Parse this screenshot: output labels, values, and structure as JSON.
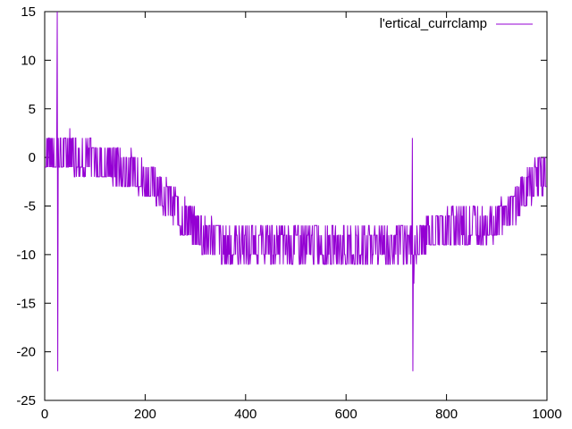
{
  "chart_data": {
    "type": "line",
    "title": "",
    "xlabel": "",
    "ylabel": "",
    "xlim": [
      0,
      1000
    ],
    "ylim": [
      -25,
      15
    ],
    "xticks": [
      0,
      200,
      400,
      600,
      800,
      1000
    ],
    "yticks": [
      -25,
      -20,
      -15,
      -10,
      -5,
      0,
      5,
      10,
      15
    ],
    "grid": false,
    "legend": "top-right",
    "series": [
      {
        "name": "l'ertical_currclamp",
        "color": "#9400d3",
        "baseline": [
          [
            0,
            0.5
          ],
          [
            50,
            0.5
          ],
          [
            80,
            0
          ],
          [
            150,
            -1
          ],
          [
            180,
            -1.5
          ],
          [
            210,
            -2.5
          ],
          [
            240,
            -4
          ],
          [
            265,
            -5.5
          ],
          [
            290,
            -7
          ],
          [
            320,
            -8
          ],
          [
            355,
            -9
          ],
          [
            400,
            -9
          ],
          [
            500,
            -9
          ],
          [
            600,
            -9
          ],
          [
            700,
            -9
          ],
          [
            730,
            -9
          ],
          [
            780,
            -7.5
          ],
          [
            830,
            -7
          ],
          [
            880,
            -7
          ],
          [
            920,
            -6
          ],
          [
            950,
            -4
          ],
          [
            980,
            -2
          ],
          [
            1000,
            -1.5
          ]
        ],
        "noise_amplitude": 1.5,
        "spikes": [
          [
            25,
            15
          ],
          [
            26,
            -22
          ],
          [
            50,
            3
          ],
          [
            732,
            2
          ],
          [
            733,
            -22
          ],
          [
            735,
            -13
          ]
        ]
      }
    ]
  }
}
